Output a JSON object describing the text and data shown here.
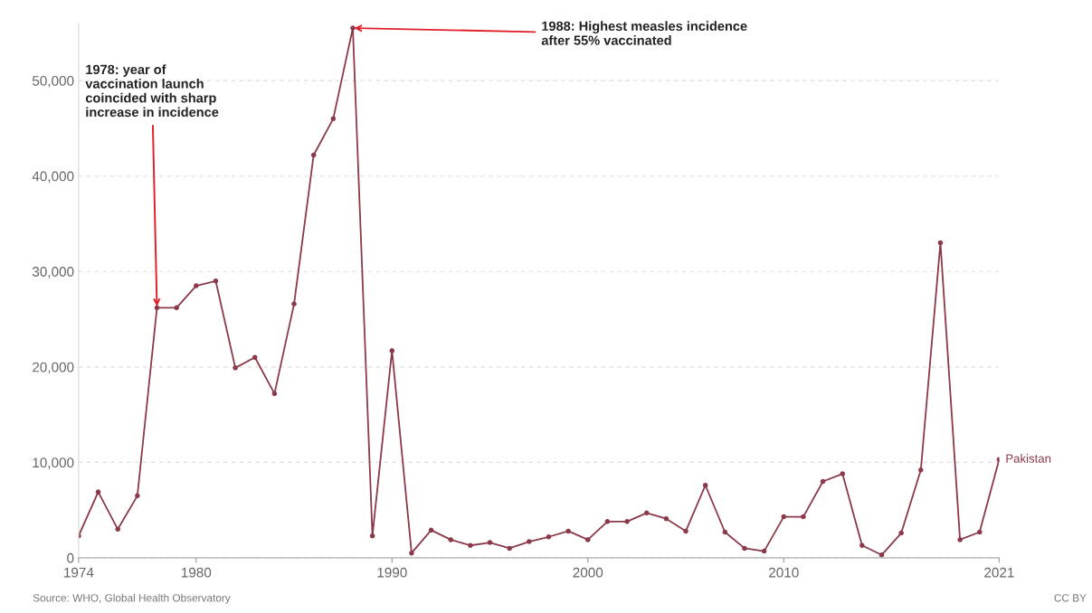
{
  "chart_data": {
    "type": "line",
    "x": [
      1974,
      1975,
      1976,
      1977,
      1978,
      1979,
      1980,
      1981,
      1982,
      1983,
      1984,
      1985,
      1986,
      1987,
      1988,
      1989,
      1990,
      1991,
      1992,
      1993,
      1994,
      1995,
      1996,
      1997,
      1998,
      1999,
      2000,
      2001,
      2002,
      2003,
      2004,
      2005,
      2006,
      2007,
      2008,
      2009,
      2010,
      2011,
      2012,
      2013,
      2014,
      2015,
      2016,
      2017,
      2018,
      2019,
      2020,
      2021
    ],
    "series": [
      {
        "name": "Pakistan",
        "color": "#8b3a4a",
        "values": [
          2300,
          6900,
          3000,
          6500,
          26200,
          26200,
          28500,
          29000,
          19900,
          21000,
          17200,
          26600,
          42200,
          46000,
          55500,
          2300,
          21700,
          500,
          2900,
          1900,
          1300,
          1600,
          1000,
          1700,
          2200,
          2800,
          1900,
          3800,
          3800,
          4700,
          4100,
          2800,
          7600,
          2700,
          1000,
          700,
          4300,
          4300,
          8000,
          8800,
          1300,
          300,
          2600,
          9200,
          33000,
          1900,
          2700,
          10300
        ]
      }
    ],
    "xlim": [
      1974,
      2021
    ],
    "xticks": [
      1974,
      1980,
      1990,
      2000,
      2010,
      2021
    ],
    "ylim": [
      0,
      56000
    ],
    "yticks": [
      {
        "value": 0,
        "label": "0"
      },
      {
        "value": 10000,
        "label": "10,000"
      },
      {
        "value": 20000,
        "label": "20,000"
      },
      {
        "value": 30000,
        "label": "30,000"
      },
      {
        "value": 40000,
        "label": "40,000"
      },
      {
        "value": 50000,
        "label": "50,000"
      }
    ],
    "grid": "y",
    "marker": "circle",
    "line_style": "solid",
    "legend": false,
    "annotations": [
      {
        "text": "1978: year of\nvaccination launch\ncoincided with sharp\nincrease in incidence",
        "x": 1978,
        "y": 26200
      },
      {
        "text": "1988: Highest measles incidence\nafter 55% vaccinated",
        "x": 1988,
        "y": 55500
      },
      "Source: WHO, Global Health Observatory",
      "CC BY"
    ]
  }
}
